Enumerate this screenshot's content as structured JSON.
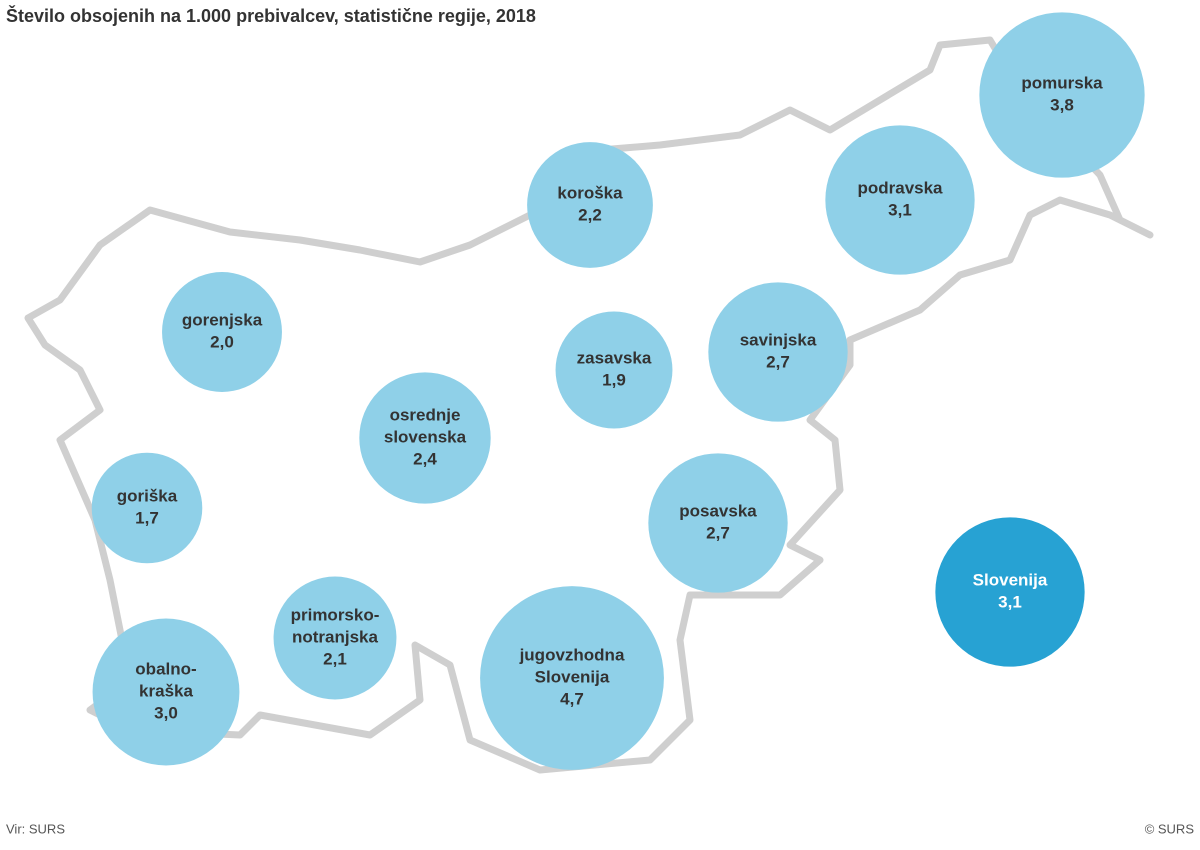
{
  "chart_data": {
    "type": "bubble-map",
    "title": "Število obsojenih na 1.000 prebivalcev, statistične regije, 2018",
    "categories": [
      [
        "pomurska"
      ],
      [
        "podravska"
      ],
      [
        "koroška"
      ],
      [
        "gorenjska"
      ],
      [
        "zasavska"
      ],
      [
        "savinjska"
      ],
      [
        "osrednje",
        "slovenska"
      ],
      [
        "goriška"
      ],
      [
        "posavska"
      ],
      [
        "Slovenija"
      ],
      [
        "primorsko-",
        "notranjska"
      ],
      [
        "jugovzhodna",
        "Slovenija"
      ],
      [
        "obalno-",
        "kraška"
      ]
    ],
    "values": [
      3.8,
      3.1,
      2.2,
      2.0,
      1.9,
      2.7,
      2.4,
      1.7,
      2.7,
      3.1,
      2.1,
      4.7,
      3.0
    ],
    "value_labels": [
      "3,8",
      "3,1",
      "2,2",
      "2,0",
      "1,9",
      "2,7",
      "2,4",
      "1,7",
      "2,7",
      "3,1",
      "2,1",
      "4,7",
      "3,0"
    ],
    "colors": [
      "#8fd0e8",
      "#8fd0e8",
      "#8fd0e8",
      "#8fd0e8",
      "#8fd0e8",
      "#8fd0e8",
      "#8fd0e8",
      "#8fd0e8",
      "#8fd0e8",
      "#27a2d3",
      "#8fd0e8",
      "#8fd0e8",
      "#8fd0e8"
    ],
    "source": "Vir: SURS",
    "copyright": "© SURS"
  }
}
